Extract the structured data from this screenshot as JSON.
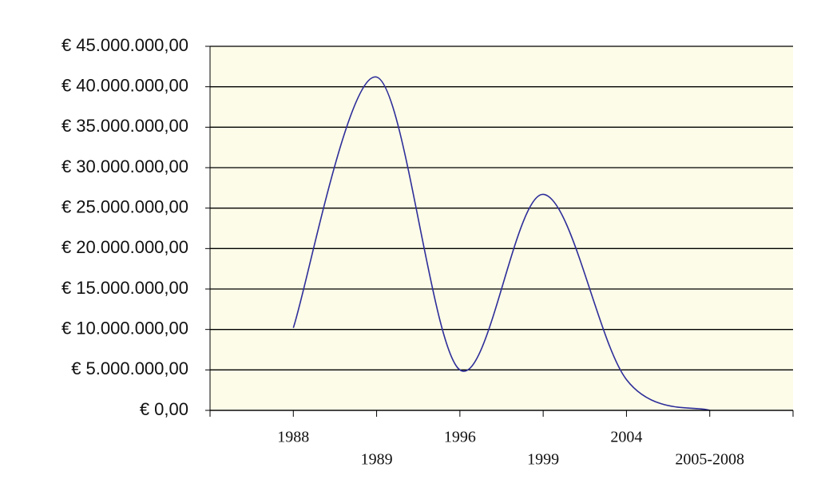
{
  "chart_data": {
    "type": "line",
    "smooth": true,
    "color": "#2e2e9a",
    "plot_background": "#fdfce8",
    "grid": true,
    "categories": [
      "1988",
      "1989",
      "1996",
      "1999",
      "2004",
      "2005-2008"
    ],
    "values": [
      10200000,
      41200000,
      5000000,
      26700000,
      3800000,
      0
    ],
    "ylim": [
      0,
      45000000
    ],
    "yticks": [
      {
        "value": 0,
        "label": "€ 0,00"
      },
      {
        "value": 5000000,
        "label": "€ 5.000.000,00"
      },
      {
        "value": 10000000,
        "label": "€ 10.000.000,00"
      },
      {
        "value": 15000000,
        "label": "€ 15.000.000,00"
      },
      {
        "value": 20000000,
        "label": "€ 20.000.000,00"
      },
      {
        "value": 25000000,
        "label": "€ 25.000.000,00"
      },
      {
        "value": 30000000,
        "label": "€ 30.000.000,00"
      },
      {
        "value": 35000000,
        "label": "€ 35.000.000,00"
      },
      {
        "value": 40000000,
        "label": "€ 40.000.000,00"
      },
      {
        "value": 45000000,
        "label": "€ 45.000.000,00"
      }
    ]
  }
}
